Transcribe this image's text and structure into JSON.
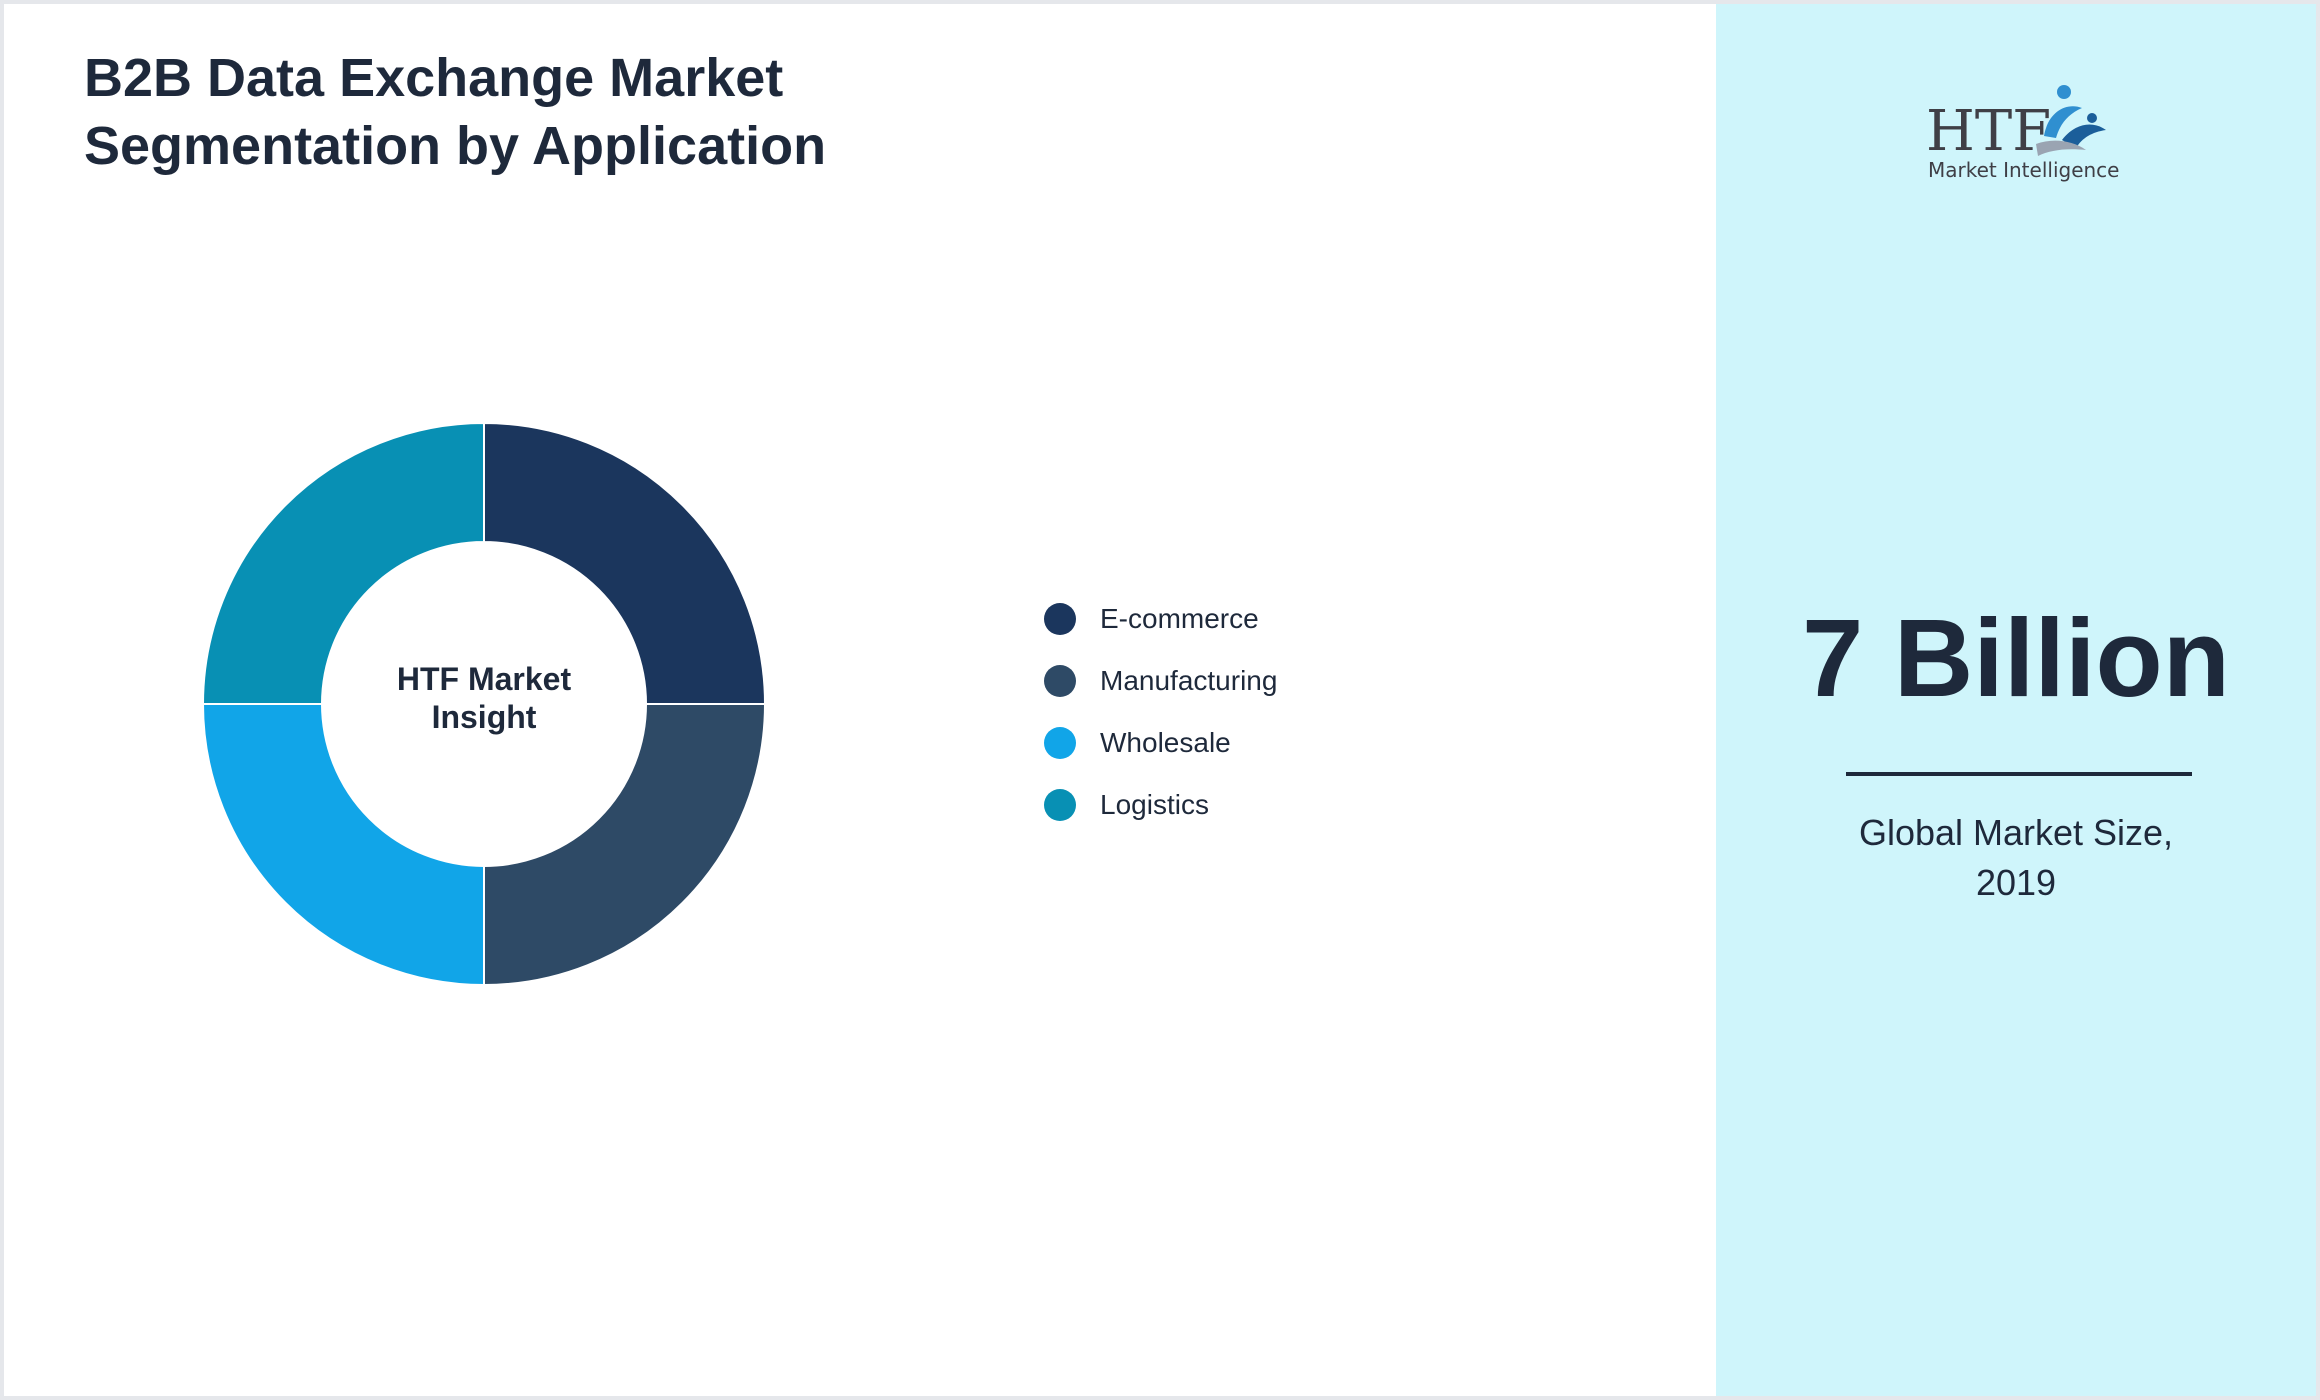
{
  "colors": {
    "background_left": "#ffffff",
    "background_right": "#cff5fb",
    "text": "#1e293b"
  },
  "chart_data": {
    "type": "pie",
    "variant": "donut",
    "title_lines": [
      "B2B Data Exchange Market",
      "Segmentation by Application"
    ],
    "center_label_lines": [
      "HTF Market",
      "Insight"
    ],
    "legend_position": "right",
    "series": [
      {
        "name": "E-commerce",
        "value": 25,
        "color": "#1b365d"
      },
      {
        "name": "Manufacturing",
        "value": 25,
        "color": "#2e4a66"
      },
      {
        "name": "Wholesale",
        "value": 25,
        "color": "#11a5e8"
      },
      {
        "name": "Logistics",
        "value": 25,
        "color": "#0890b4"
      }
    ]
  },
  "logo": {
    "icon": "htf-logo-icon",
    "mark_text": "HTF",
    "subtitle": "Market Intelligence"
  },
  "stat": {
    "value": "7 Billion",
    "caption_lines": [
      "Global Market Size,",
      "2019"
    ]
  }
}
